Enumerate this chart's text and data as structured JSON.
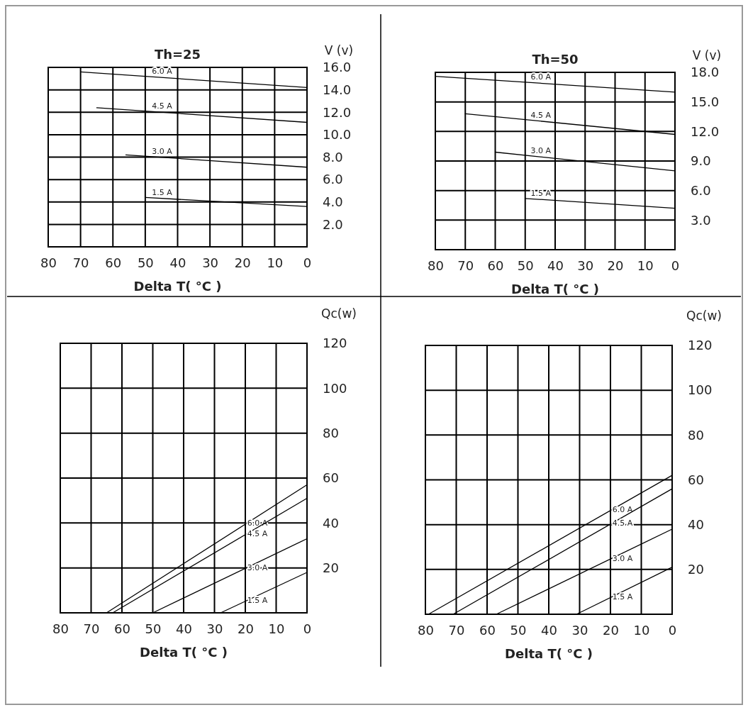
{
  "chart_data": [
    {
      "type": "line",
      "title": "Th=25",
      "xlabel": "Delta T( °C )",
      "ylabel": "V (v)",
      "xlim": [
        80,
        0
      ],
      "xticks": [
        80,
        70,
        60,
        50,
        40,
        30,
        20,
        10,
        0
      ],
      "ylim": [
        0,
        16
      ],
      "yticks": [
        {
          "value": 2,
          "label": "2.0"
        },
        {
          "value": 4,
          "label": "4.0"
        },
        {
          "value": 6,
          "label": "6.0"
        },
        {
          "value": 8,
          "label": "8.0"
        },
        {
          "value": 10,
          "label": "10.0"
        },
        {
          "value": 12,
          "label": "12.0"
        },
        {
          "value": 14,
          "label": "14.0"
        },
        {
          "value": 16,
          "label": "16.0"
        }
      ],
      "grid": true,
      "legend": false,
      "marker": "none",
      "line_style": "solid",
      "series": [
        {
          "name": "6.0 A",
          "color": "#000000",
          "x": [
            70,
            0
          ],
          "values": [
            15.6,
            14.2
          ]
        },
        {
          "name": "4.5 A",
          "color": "#000000",
          "x": [
            65,
            0
          ],
          "values": [
            12.4,
            11.1
          ]
        },
        {
          "name": "3.0 A",
          "color": "#000000",
          "x": [
            56,
            0
          ],
          "values": [
            8.2,
            7.1
          ]
        },
        {
          "name": "1.5 A",
          "color": "#000000",
          "x": [
            50,
            0
          ],
          "values": [
            4.4,
            3.6
          ]
        }
      ]
    },
    {
      "type": "line",
      "title": "Th=50",
      "xlabel": "Delta T( °C )",
      "ylabel": "V (v)",
      "xlim": [
        80,
        0
      ],
      "xticks": [
        80,
        70,
        60,
        50,
        40,
        30,
        20,
        10,
        0
      ],
      "ylim": [
        0,
        18
      ],
      "yticks": [
        {
          "value": 3,
          "label": "3.0"
        },
        {
          "value": 6,
          "label": "6.0"
        },
        {
          "value": 9,
          "label": "9.0"
        },
        {
          "value": 12,
          "label": "12.0"
        },
        {
          "value": 15,
          "label": "15.0"
        },
        {
          "value": 18,
          "label": "18.0"
        }
      ],
      "grid": true,
      "legend": false,
      "marker": "none",
      "line_style": "solid",
      "series": [
        {
          "name": "6.0 A",
          "color": "#000000",
          "x": [
            80,
            0
          ],
          "values": [
            17.6,
            16.0
          ]
        },
        {
          "name": "4.5 A",
          "color": "#000000",
          "x": [
            70,
            0
          ],
          "values": [
            13.8,
            11.7
          ]
        },
        {
          "name": "3.0 A",
          "color": "#000000",
          "x": [
            60,
            0
          ],
          "values": [
            9.9,
            8.0
          ]
        },
        {
          "name": "1.5 A",
          "color": "#000000",
          "x": [
            50,
            0
          ],
          "values": [
            5.2,
            4.2
          ]
        }
      ]
    },
    {
      "type": "line",
      "xlabel": "Delta T( °C )",
      "ylabel": "Qc(w)",
      "xlim": [
        80,
        0
      ],
      "xticks": [
        80,
        70,
        60,
        50,
        40,
        30,
        20,
        10,
        0
      ],
      "ylim": [
        0,
        120
      ],
      "yticks": [
        20,
        40,
        60,
        80,
        100,
        120
      ],
      "grid": true,
      "legend": false,
      "marker": "none",
      "line_style": "solid",
      "series": [
        {
          "name": "6.0 A",
          "color": "#000000",
          "x": [
            65,
            0
          ],
          "values": [
            0,
            57
          ]
        },
        {
          "name": "4.5 A",
          "color": "#000000",
          "x": [
            63,
            0
          ],
          "values": [
            0,
            51
          ]
        },
        {
          "name": "3.0 A",
          "color": "#000000",
          "x": [
            50,
            0
          ],
          "values": [
            0,
            33
          ]
        },
        {
          "name": "1.5 A",
          "color": "#000000",
          "x": [
            28,
            0
          ],
          "values": [
            0,
            18
          ]
        }
      ]
    },
    {
      "type": "line",
      "xlabel": "Delta T( °C )",
      "ylabel": "Qc(w)",
      "xlim": [
        80,
        0
      ],
      "xticks": [
        80,
        70,
        60,
        50,
        40,
        30,
        20,
        10,
        0
      ],
      "ylim": [
        0,
        120
      ],
      "yticks": [
        20,
        40,
        60,
        80,
        100,
        120
      ],
      "grid": true,
      "legend": false,
      "marker": "none",
      "line_style": "solid",
      "series": [
        {
          "name": "6.0 A",
          "color": "#000000",
          "x": [
            79,
            0
          ],
          "values": [
            0,
            62
          ]
        },
        {
          "name": "4.5 A",
          "color": "#000000",
          "x": [
            71,
            0
          ],
          "values": [
            0,
            56
          ]
        },
        {
          "name": "3.0 A",
          "color": "#000000",
          "x": [
            57,
            0
          ],
          "values": [
            0,
            38
          ]
        },
        {
          "name": "1.5 A",
          "color": "#000000",
          "x": [
            31,
            0
          ],
          "values": [
            0,
            21
          ]
        }
      ]
    }
  ]
}
